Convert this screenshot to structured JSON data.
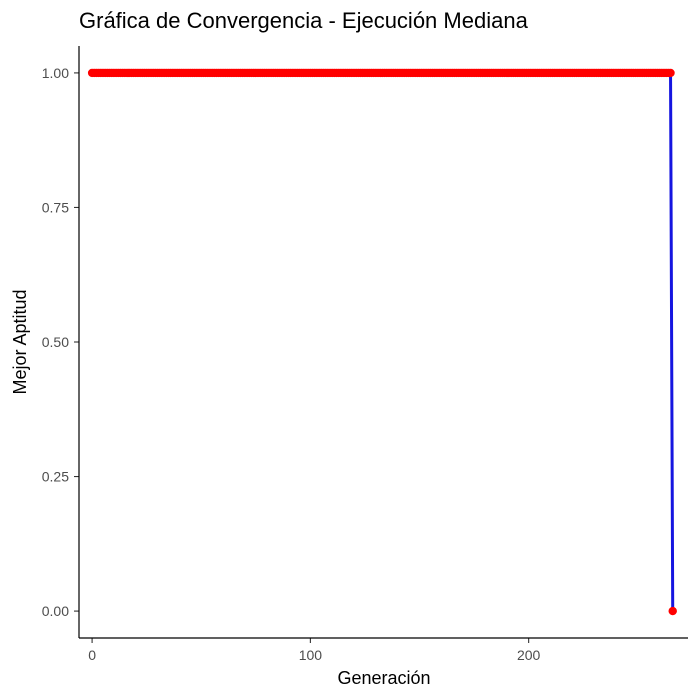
{
  "chart_data": {
    "type": "line",
    "title": "Gráfica de Convergencia - Ejecución Mediana",
    "xlabel": "Generación",
    "ylabel": "Mejor Aptitud",
    "xlim": [
      -6,
      273
    ],
    "ylim": [
      -0.05,
      1.05
    ],
    "x_ticks": [
      0,
      100,
      200
    ],
    "y_ticks": [
      0.0,
      0.25,
      0.5,
      0.75,
      1.0
    ],
    "x_tick_labels": [
      "0",
      "100",
      "200"
    ],
    "y_tick_labels": [
      "0.00",
      "0.25",
      "0.50",
      "0.75",
      "1.00"
    ],
    "grid": false,
    "legend": "none",
    "line_color": "#1515e0",
    "point_color": "#ff0000",
    "series": [
      {
        "generations": {
          "start": 0,
          "end": 265,
          "value": 1.0
        },
        "final_point": {
          "x": 266,
          "y": 0.0
        }
      }
    ]
  }
}
